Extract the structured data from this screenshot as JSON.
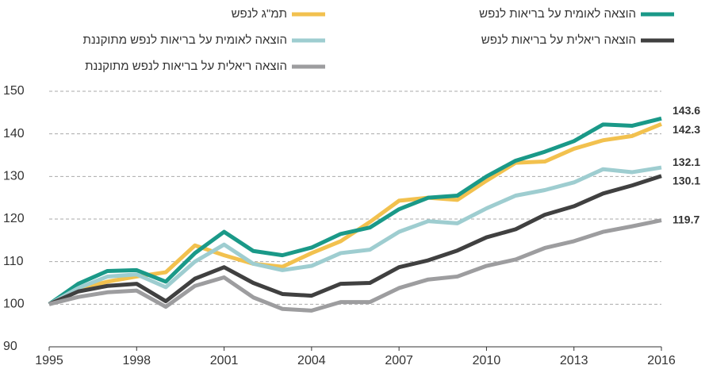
{
  "chart_data": {
    "type": "line",
    "x": [
      1995,
      1996,
      1997,
      1998,
      1999,
      2000,
      2001,
      2002,
      2003,
      2004,
      2005,
      2006,
      2007,
      2008,
      2009,
      2010,
      2011,
      2012,
      2013,
      2014,
      2015,
      2016
    ],
    "xlim": [
      1995,
      2016
    ],
    "xticks": [
      1995,
      1998,
      2001,
      2004,
      2007,
      2010,
      2013,
      2016
    ],
    "ylim": [
      90,
      150
    ],
    "yticks": [
      90,
      100,
      110,
      120,
      130,
      140,
      150
    ],
    "grid": true,
    "series": [
      {
        "name": "תמ\"ג לנפש",
        "color": "#f2c14e",
        "values": [
          100,
          103.5,
          105.3,
          106.5,
          107.5,
          113.8,
          111.5,
          109.5,
          108.8,
          112,
          114.8,
          119.3,
          124.3,
          125,
          124.5,
          129,
          133.2,
          133.5,
          136.5,
          138.5,
          139.5,
          142.3
        ]
      },
      {
        "name": "הוצאה לאומית על בריאות לנפש",
        "color": "#1a9988",
        "values": [
          100,
          104.8,
          107.8,
          108,
          105.3,
          112,
          117,
          112.5,
          111.5,
          113.3,
          116.5,
          118,
          122.3,
          125,
          125.5,
          130,
          133.7,
          135.8,
          138.3,
          142.2,
          141.9,
          143.6
        ]
      },
      {
        "name": "הוצאה לאומית על בריאות לנפש מתוקננת",
        "color": "#9ecdd0",
        "values": [
          100,
          103.8,
          106.5,
          107,
          104,
          110,
          114,
          109.5,
          108,
          109,
          112,
          112.8,
          117,
          119.5,
          119,
          122.5,
          125.5,
          126.8,
          128.6,
          131.7,
          131,
          132.1
        ]
      },
      {
        "name": "הוצאה ריאלית על בריאות לנפש",
        "color": "#404040",
        "values": [
          100,
          103,
          104.3,
          104.8,
          100.7,
          106,
          108.7,
          105,
          102.4,
          102,
          104.8,
          105,
          108.7,
          110.3,
          112.6,
          115.7,
          117.6,
          121,
          123,
          126,
          127.9,
          130.1
        ]
      },
      {
        "name": "הוצאה ריאלית על בריאות לנפש מתוקננת",
        "color": "#9d9d9f",
        "values": [
          100,
          101.7,
          102.8,
          103.2,
          99.4,
          104.3,
          106.3,
          101.6,
          98.9,
          98.5,
          100.5,
          100.5,
          103.8,
          105.8,
          106.5,
          109,
          110.5,
          113.2,
          114.8,
          117,
          118.3,
          119.7
        ]
      }
    ]
  }
}
